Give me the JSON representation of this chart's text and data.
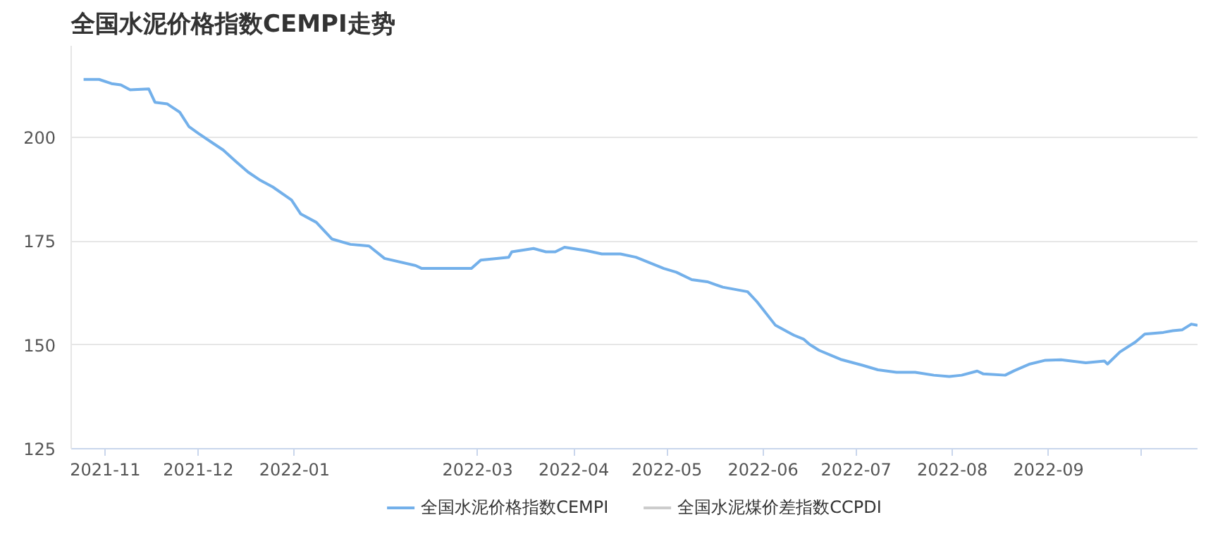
{
  "chart_data": {
    "type": "line",
    "title": "全国水泥价格指数CEMPI走势",
    "x": [
      "2021-10-25",
      "2021-10-30",
      "2021-11-03",
      "2021-11-06",
      "2021-11-09",
      "2021-11-15",
      "2021-11-17",
      "2021-11-21",
      "2021-11-25",
      "2021-11-28",
      "2021-12-01",
      "2021-12-05",
      "2021-12-09",
      "2021-12-13",
      "2021-12-17",
      "2021-12-21",
      "2021-12-25",
      "2021-12-31",
      "2022-01-03",
      "2022-01-08",
      "2022-01-13",
      "2022-01-19",
      "2022-01-25",
      "2022-01-30",
      "2022-02-09",
      "2022-02-11",
      "2022-02-27",
      "2022-03-02",
      "2022-03-11",
      "2022-03-12",
      "2022-03-19",
      "2022-03-23",
      "2022-03-26",
      "2022-03-29",
      "2022-04-05",
      "2022-04-10",
      "2022-04-16",
      "2022-04-21",
      "2022-04-30",
      "2022-05-04",
      "2022-05-09",
      "2022-05-14",
      "2022-05-19",
      "2022-05-27",
      "2022-05-30",
      "2022-06-05",
      "2022-06-10",
      "2022-06-11",
      "2022-06-14",
      "2022-06-16",
      "2022-06-19",
      "2022-06-26",
      "2022-07-03",
      "2022-07-08",
      "2022-07-14",
      "2022-07-20",
      "2022-07-26",
      "2022-07-31",
      "2022-08-04",
      "2022-08-09",
      "2022-08-11",
      "2022-08-18",
      "2022-08-21",
      "2022-08-26",
      "2022-08-31",
      "2022-09-05",
      "2022-09-13",
      "2022-09-19",
      "2022-09-20",
      "2022-09-24",
      "2022-09-29",
      "2022-10-02",
      "2022-10-08",
      "2022-10-11",
      "2022-10-14",
      "2022-10-17",
      "2022-10-19"
    ],
    "series": [
      {
        "name": "全国水泥价格指数CEMPI",
        "color": "#73b0ea",
        "values": [
          213.9,
          213.9,
          212.9,
          212.6,
          211.4,
          211.6,
          208.4,
          208,
          206,
          202.5,
          200.9,
          198.9,
          196.9,
          194.2,
          191.6,
          189.6,
          188,
          184.9,
          181.5,
          179.5,
          175.5,
          174.2,
          173.8,
          170.8,
          169.1,
          168.4,
          168.4,
          170.4,
          171.1,
          172.4,
          173.2,
          172.4,
          172.4,
          173.5,
          172.7,
          171.9,
          171.9,
          171.1,
          168.4,
          167.5,
          165.7,
          165.2,
          163.9,
          162.8,
          160.4,
          154.7,
          152.7,
          152.3,
          151.4,
          150.1,
          148.7,
          146.5,
          145.1,
          144,
          143.4,
          143.4,
          142.7,
          142.4,
          142.7,
          143.7,
          143,
          142.7,
          143.8,
          145.4,
          146.3,
          146.4,
          145.7,
          146.1,
          145.4,
          148.3,
          150.7,
          152.6,
          153,
          153.4,
          153.6,
          155,
          154.7
        ]
      },
      {
        "name": "全国水泥煤价差指数CCPDI",
        "color": "#cccccc",
        "values": [
          null,
          null,
          null,
          null,
          null,
          null,
          null,
          null,
          null,
          null,
          null,
          null,
          null,
          null,
          null,
          null,
          null,
          null,
          null,
          null,
          null,
          null,
          null,
          null,
          null,
          null,
          null,
          null,
          null,
          null,
          null,
          null,
          null,
          null,
          null,
          null,
          null,
          null,
          null,
          null,
          null,
          null,
          null,
          null,
          null,
          null,
          null,
          null,
          null,
          null,
          null,
          null,
          null,
          null,
          null,
          null,
          null,
          null,
          null,
          null,
          null,
          null,
          null,
          null,
          null,
          null,
          null,
          null,
          null,
          null,
          null,
          null,
          null,
          null,
          null,
          null,
          null
        ]
      }
    ],
    "xlim": [
      "2021-10-21",
      "2022-10-19"
    ],
    "xticks": [
      {
        "value": "2021-11-01",
        "label": "2021-11"
      },
      {
        "value": "2021-12-01",
        "label": "2021-12"
      },
      {
        "value": "2022-01-01",
        "label": "2022-01"
      },
      {
        "value": "2022-03-01",
        "label": "2022-03"
      },
      {
        "value": "2022-04-01",
        "label": "2022-04"
      },
      {
        "value": "2022-05-01",
        "label": "2022-05"
      },
      {
        "value": "2022-06-01",
        "label": "2022-06"
      },
      {
        "value": "2022-07-01",
        "label": "2022-07"
      },
      {
        "value": "2022-08-01",
        "label": "2022-08"
      },
      {
        "value": "2022-09-01",
        "label": "2022-09"
      },
      {
        "value": "2022-10-01",
        "label": null
      }
    ],
    "ylim": [
      125,
      222
    ],
    "yticks": [
      125,
      150,
      175,
      200
    ],
    "grid": "y",
    "legend": "bottom",
    "marker": "none",
    "line_style": "solid"
  }
}
